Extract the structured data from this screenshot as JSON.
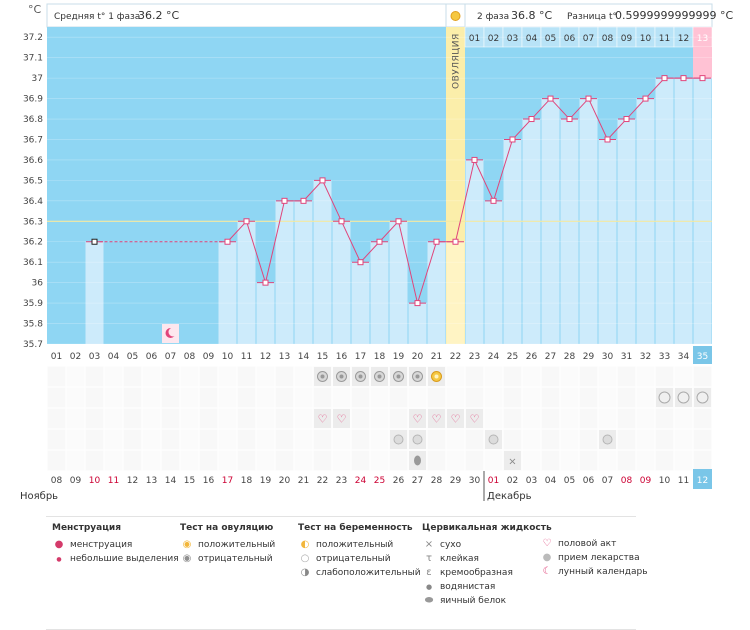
{
  "header": {
    "y_unit": "°C",
    "phase1_label": "Средняя t° 1 фаза",
    "phase1_value": "36.2 °C",
    "phase2_label": "2 фаза",
    "phase2_value": "36.8 °C",
    "diff_label": "Разница t°",
    "diff_value": "0.5999999999999 °C",
    "ovulation_label": "ОВУЛЯЦИЯ"
  },
  "months": {
    "left": "Ноябрь",
    "right": "Декабрь"
  },
  "chart_data": {
    "type": "line",
    "title": "",
    "xlabel": "",
    "ylabel": "°C",
    "ylim": [
      35.7,
      37.25
    ],
    "yticks": [
      35.7,
      35.8,
      35.9,
      36,
      36.1,
      36.2,
      36.3,
      36.4,
      36.5,
      36.6,
      36.7,
      36.8,
      36.9,
      37,
      37.1,
      37.2
    ],
    "cycle_days": [
      "01",
      "02",
      "03",
      "04",
      "05",
      "06",
      "07",
      "08",
      "09",
      "10",
      "11",
      "12",
      "13",
      "14",
      "15",
      "16",
      "17",
      "18",
      "19",
      "20",
      "21",
      "22",
      "23",
      "24",
      "25",
      "26",
      "27",
      "28",
      "29",
      "30",
      "31",
      "32",
      "33",
      "34",
      "35"
    ],
    "current_day": "35",
    "dates": [
      "08",
      "09",
      "10",
      "11",
      "12",
      "13",
      "14",
      "15",
      "16",
      "17",
      "18",
      "19",
      "20",
      "21",
      "22",
      "23",
      "24",
      "25",
      "26",
      "27",
      "28",
      "29",
      "30",
      "01",
      "02",
      "03",
      "04",
      "05",
      "06",
      "07",
      "08",
      "09",
      "10",
      "11",
      "12"
    ],
    "red_dates": [
      2,
      3,
      9,
      16,
      17,
      23,
      30,
      31
    ],
    "current_date": "12",
    "ovulation_day": 22,
    "coverline": 36.3,
    "phase2_days": [
      "01",
      "02",
      "03",
      "04",
      "05",
      "06",
      "07",
      "08",
      "09",
      "10",
      "11",
      "12",
      "13"
    ],
    "phase2_highlight": "13",
    "temps": [
      null,
      null,
      36.2,
      null,
      null,
      null,
      null,
      null,
      null,
      36.2,
      36.3,
      36.0,
      36.4,
      36.4,
      36.5,
      36.3,
      36.1,
      36.2,
      36.3,
      35.9,
      36.2,
      36.2,
      36.6,
      36.4,
      36.7,
      36.8,
      36.9,
      36.8,
      36.9,
      36.7,
      36.8,
      36.9,
      37.0,
      37.0,
      37.0
    ],
    "interpolated_through_day": 10,
    "moon_day": 7,
    "rows": {
      "ovulation_test_negative": [
        15,
        16,
        17,
        18,
        19,
        20
      ],
      "ovulation_test_positive": [
        21
      ],
      "pregnancy_test_negative": [
        33,
        34,
        35
      ],
      "intercourse": [
        15,
        16,
        20,
        21,
        22,
        23
      ],
      "medication": [
        19,
        20,
        24,
        30
      ],
      "fluid_dry": [
        25
      ],
      "fluid_egg_white": [
        20
      ]
    }
  },
  "legend": {
    "menstruation": {
      "title": "Менструация",
      "items": [
        "менструация",
        "небольшие выделения"
      ]
    },
    "ovulation_test": {
      "title": "Тест на овуляцию",
      "items": [
        "положительный",
        "отрицательный"
      ]
    },
    "pregnancy_test": {
      "title": "Тест на беременность",
      "items": [
        "положительный",
        "отрицательный",
        "слабоположительный"
      ]
    },
    "cervical_fluid": {
      "title": "Цервикальная жидкость",
      "items": [
        "сухо",
        "клейкая",
        "кремообразная",
        "водянистая",
        "яичный белок"
      ]
    },
    "other": {
      "items": [
        "половой акт",
        "прием лекарства",
        "лунный календарь"
      ]
    }
  },
  "colors": {
    "plot_bg": "#8fd6f3",
    "bar": "#cdebfb",
    "line": "#e0457b",
    "ovulation": "#fbeeaa",
    "highlight": "#ffc2d4",
    "current": "#7ac6e8",
    "red_date": "#cc0033",
    "coverline": "#f3e9a2"
  }
}
